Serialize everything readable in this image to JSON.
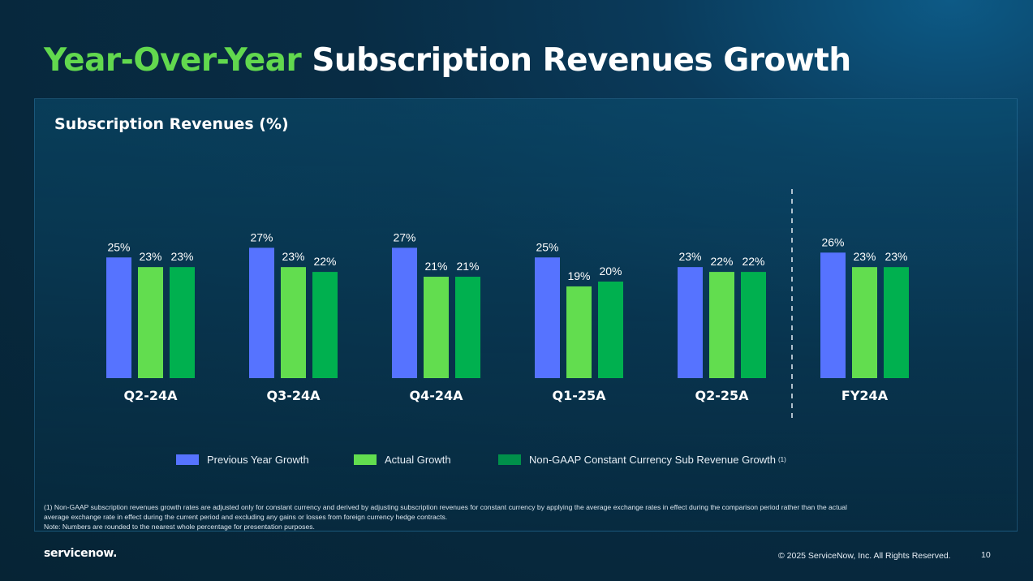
{
  "title": {
    "accent": "Year-Over-Year",
    "rest": "Subscription Revenues Growth"
  },
  "panel_title": "Subscription Revenues (%)",
  "colors": {
    "previous": "#5673ff",
    "actual": "#62dd4f",
    "non_gaap": "#00b04f",
    "title_accent": "#62d84e"
  },
  "chart_data": {
    "type": "bar",
    "title": "Subscription Revenues (%)",
    "categories": [
      "Q2-24A",
      "Q3-24A",
      "Q4-24A",
      "Q1-25A",
      "Q2-25A",
      "FY24A"
    ],
    "series": [
      {
        "name": "Previous Year Growth",
        "values": [
          25,
          27,
          27,
          25,
          23,
          26
        ]
      },
      {
        "name": "Actual Growth",
        "values": [
          23,
          23,
          21,
          19,
          22,
          23
        ]
      },
      {
        "name": "Non-GAAP Constant Currency Sub Revenue Growth",
        "values": [
          23,
          22,
          21,
          20,
          22,
          23
        ]
      }
    ],
    "value_suffix": "%",
    "legend_position": "bottom",
    "grid": false,
    "separator_before": "FY24A"
  },
  "legend": {
    "previous": "Previous Year Growth",
    "actual": "Actual Growth",
    "non_gaap": "Non-GAAP Constant Currency Sub Revenue Growth",
    "non_gaap_ref": "(1)"
  },
  "footnotes": [
    "(1) Non-GAAP subscription revenues growth rates are adjusted only for constant currency and derived by adjusting subscription revenues for constant currency by applying the average exchange rates in effect during the comparison period rather than the actual",
    "average exchange rate in effect during the current period and excluding any gains or losses from foreign currency hedge contracts.",
    "Note: Numbers are rounded to the nearest whole percentage for presentation purposes."
  ],
  "footer": {
    "logo": "servicenow.",
    "copyright": "© 2025 ServiceNow, Inc. All Rights Reserved.",
    "page": "10"
  }
}
